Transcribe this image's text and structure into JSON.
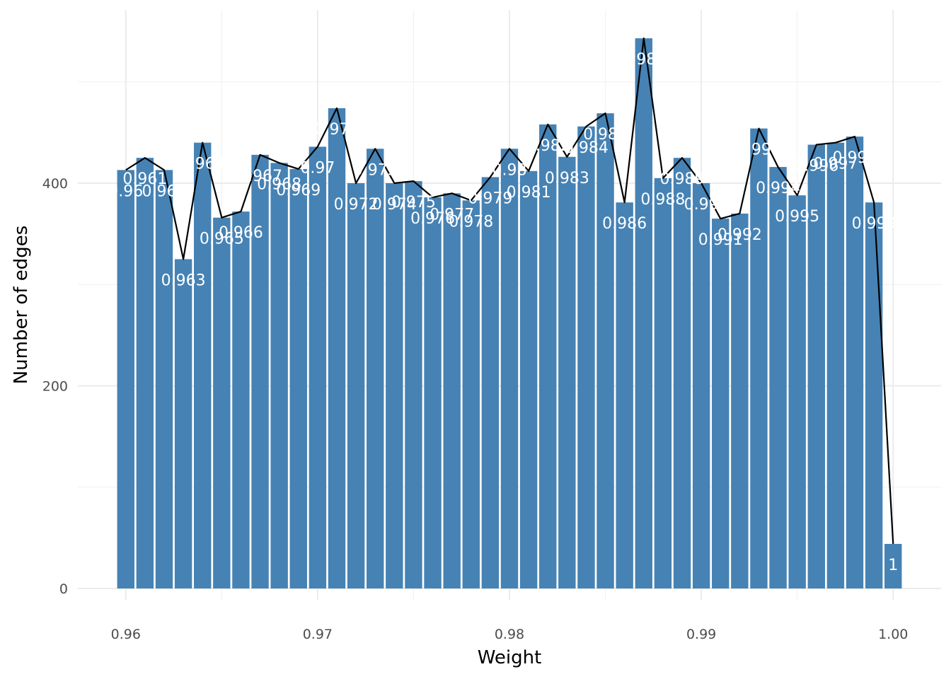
{
  "chart_data": {
    "type": "bar",
    "xlabel": "Weight",
    "ylabel": "Number of edges",
    "xlim": [
      0.9575,
      1.0025
    ],
    "ylim": [
      0,
      550
    ],
    "xticks": [
      0.96,
      0.97,
      0.98,
      0.99,
      1.0
    ],
    "xtick_labels": [
      "0.96",
      "0.97",
      "0.98",
      "0.99",
      "1.00"
    ],
    "yticks": [
      0,
      200,
      400
    ],
    "ytick_labels": [
      "0",
      "200",
      "400"
    ],
    "grid": true,
    "legend": "none",
    "bar_color": "#4682b4",
    "line_color": "#000000",
    "x": [
      0.96,
      0.961,
      0.962,
      0.963,
      0.964,
      0.965,
      0.966,
      0.967,
      0.968,
      0.969,
      0.97,
      0.971,
      0.972,
      0.973,
      0.974,
      0.975,
      0.976,
      0.977,
      0.978,
      0.979,
      0.98,
      0.981,
      0.982,
      0.983,
      0.984,
      0.985,
      0.986,
      0.987,
      0.988,
      0.989,
      0.99,
      0.991,
      0.992,
      0.993,
      0.994,
      0.995,
      0.996,
      0.997,
      0.998,
      0.999,
      1.0
    ],
    "labels": [
      "0.96",
      "0.961",
      "0.962",
      "0.963",
      "0.964",
      "0.965",
      "0.966",
      "0.967",
      "0.968",
      "0.969",
      "0.97",
      "0.971",
      "0.972",
      "0.973",
      "0.974",
      "0.975",
      "0.976",
      "0.977",
      "0.978",
      "0.979",
      "0.98",
      "0.981",
      "0.982",
      "0.983",
      "0.984",
      "0.985",
      "0.986",
      "0.987",
      "0.988",
      "0.989",
      "0.99",
      "0.991",
      "0.992",
      "0.993",
      "0.994",
      "0.995",
      "0.996",
      "0.997",
      "0.998",
      "0.999",
      "1"
    ],
    "values": [
      413,
      425,
      413,
      325,
      440,
      366,
      372,
      428,
      420,
      414,
      436,
      474,
      400,
      434,
      400,
      402,
      386,
      390,
      383,
      406,
      434,
      412,
      458,
      426,
      456,
      469,
      381,
      543,
      405,
      425,
      400,
      365,
      370,
      454,
      416,
      388,
      438,
      440,
      446,
      381,
      44
    ]
  }
}
